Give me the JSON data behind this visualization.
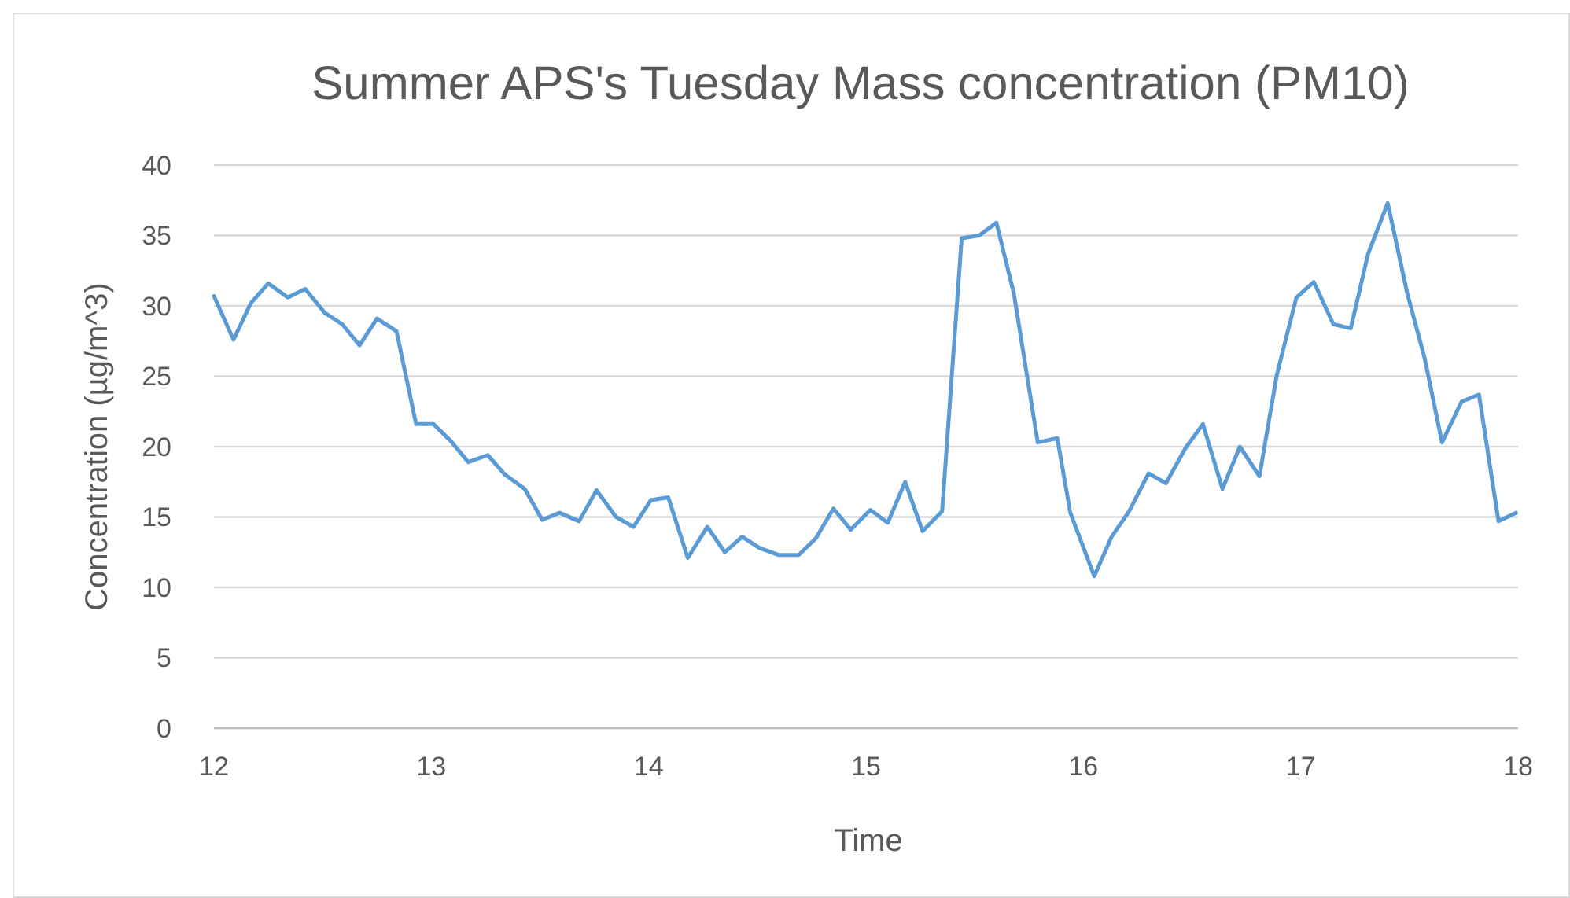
{
  "chart_data": {
    "type": "line",
    "title": "Summer APS's Tuesday Mass concentration (PM10)",
    "xlabel": "Time",
    "ylabel": "Concentration (µg/m^3)",
    "x": [
      12,
      12.09,
      12.17,
      12.25,
      12.34,
      12.42,
      12.51,
      12.59,
      12.67,
      12.75,
      12.84,
      12.93,
      13.01,
      13.09,
      13.17,
      13.26,
      13.34,
      13.43,
      13.51,
      13.59,
      13.68,
      13.76,
      13.85,
      13.93,
      14.01,
      14.09,
      14.18,
      14.27,
      14.35,
      14.43,
      14.51,
      14.6,
      14.69,
      14.77,
      14.85,
      14.93,
      15.02,
      15.1,
      15.18,
      15.26,
      15.35,
      15.44,
      15.52,
      15.6,
      15.68,
      15.79,
      15.88,
      15.94,
      16.05,
      16.13,
      16.21,
      16.3,
      16.38,
      16.47,
      16.55,
      16.64,
      16.72,
      16.81,
      16.89,
      16.98,
      17.06,
      17.15,
      17.23,
      17.31,
      17.4,
      17.49,
      17.57,
      17.65,
      17.74,
      17.82,
      17.91,
      17.99
    ],
    "series": [
      {
        "color": "#5b9bd5",
        "values": [
          30.7,
          27.6,
          30.2,
          31.6,
          30.6,
          31.2,
          29.5,
          28.7,
          27.2,
          29.1,
          28.2,
          21.6,
          21.6,
          20.4,
          18.9,
          19.4,
          18.0,
          17.0,
          14.8,
          15.3,
          14.7,
          16.9,
          15.0,
          14.3,
          16.2,
          16.4,
          12.1,
          14.3,
          12.5,
          13.6,
          12.8,
          12.3,
          12.3,
          13.5,
          15.6,
          14.1,
          15.5,
          14.6,
          17.5,
          14.0,
          15.4,
          34.8,
          35.0,
          35.9,
          30.9,
          20.3,
          20.6,
          15.3,
          10.8,
          13.6,
          15.4,
          18.1,
          17.4,
          19.9,
          21.6,
          17.0,
          20.0,
          17.9,
          25.1,
          30.6,
          31.7,
          28.7,
          28.4,
          33.7,
          37.3,
          30.9,
          26.3,
          20.3,
          23.2,
          23.7,
          14.7,
          15.3
        ]
      }
    ],
    "xlim": [
      12,
      18
    ],
    "xticks": [
      12,
      13,
      14,
      15,
      16,
      17,
      18
    ],
    "ylim": [
      0,
      40
    ],
    "yticks": [
      0,
      5,
      10,
      15,
      20,
      25,
      30,
      35,
      40
    ],
    "grid": "y",
    "line_style": "solid"
  }
}
